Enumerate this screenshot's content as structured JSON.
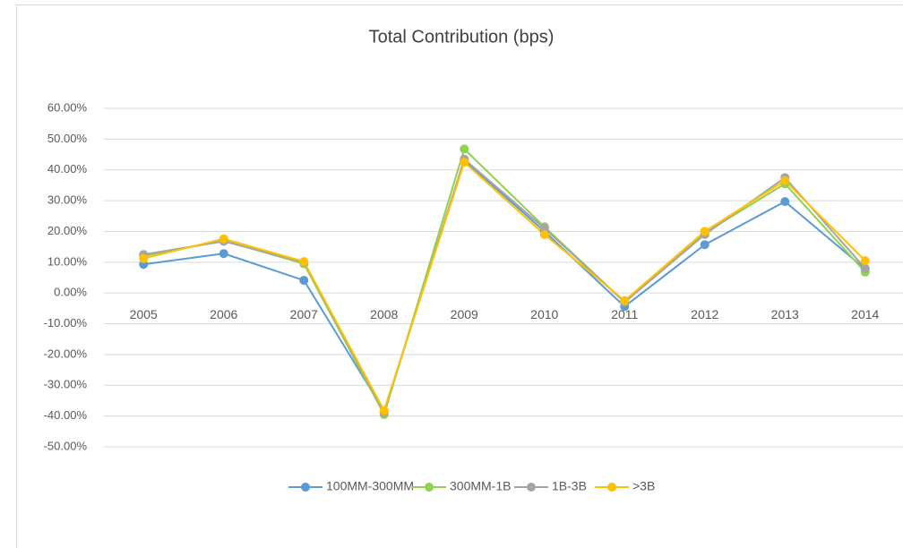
{
  "chart_data": {
    "type": "line",
    "title": "Total Contribution (bps)",
    "categories": [
      "2005",
      "2006",
      "2007",
      "2008",
      "2009",
      "2010",
      "2011",
      "2012",
      "2013",
      "2014"
    ],
    "series": [
      {
        "name": "100MM-300MM",
        "color": "#5b9bd5",
        "values": [
          9.3,
          12.8,
          4.1,
          -38.4,
          43.2,
          20.0,
          -4.4,
          15.7,
          29.7,
          7.8
        ]
      },
      {
        "name": "300MM-1B",
        "color": "#92d050",
        "values": [
          12.0,
          17.0,
          9.5,
          -39.5,
          46.8,
          21.5,
          -3.0,
          19.5,
          35.5,
          6.8
        ]
      },
      {
        "name": "1B-3B",
        "color": "#a5a5a5",
        "values": [
          12.5,
          16.8,
          10.0,
          -38.8,
          43.5,
          21.0,
          -3.0,
          19.0,
          37.5,
          8.0
        ]
      },
      {
        "name": ">3B",
        "color": "#ffc000",
        "values": [
          11.2,
          17.6,
          10.2,
          -38.2,
          42.5,
          19.0,
          -2.5,
          20.0,
          36.5,
          10.5
        ]
      }
    ],
    "ylim": [
      -50,
      60
    ],
    "yticks": [
      {
        "value": -50,
        "label": "-50.00%"
      },
      {
        "value": -40,
        "label": "-40.00%"
      },
      {
        "value": -30,
        "label": "-30.00%"
      },
      {
        "value": -20,
        "label": "-20.00%"
      },
      {
        "value": -10,
        "label": "-10.00%"
      },
      {
        "value": 0,
        "label": "0.00%"
      },
      {
        "value": 10,
        "label": "10.00%"
      },
      {
        "value": 20,
        "label": "20.00%"
      },
      {
        "value": 30,
        "label": "30.00%"
      },
      {
        "value": 40,
        "label": "40.00%"
      },
      {
        "value": 50,
        "label": "50.00%"
      },
      {
        "value": 60,
        "label": "60.00%"
      }
    ],
    "grid": true,
    "legend": "bottom"
  }
}
